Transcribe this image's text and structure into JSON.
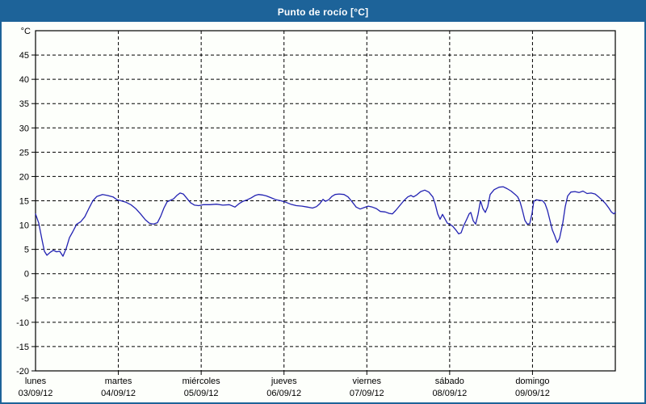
{
  "window": {
    "title": "Punto de rocío [°C]"
  },
  "colors": {
    "titlebar": "#1d6399",
    "border": "#1d6399",
    "page_bg": "#fdfffb",
    "axis": "#000000",
    "grid": "#000000",
    "line": "#2222b2"
  },
  "chart_data": {
    "type": "line",
    "title": "Punto de rocío [°C]",
    "ylabel": "°C",
    "unit_label": "°C",
    "ylim": [
      -20,
      50
    ],
    "y_ticks": [
      45,
      40,
      35,
      30,
      25,
      20,
      15,
      10,
      5,
      0,
      -5,
      -10,
      -15,
      -20
    ],
    "grid": "dashed",
    "legend": "none",
    "x_days": [
      {
        "name": "lunes",
        "date": "03/09/12"
      },
      {
        "name": "martes",
        "date": "04/09/12"
      },
      {
        "name": "miércoles",
        "date": "05/09/12"
      },
      {
        "name": "jueves",
        "date": "06/09/12"
      },
      {
        "name": "viernes",
        "date": "07/09/12"
      },
      {
        "name": "sábado",
        "date": "08/09/12"
      },
      {
        "name": "domingo",
        "date": "09/09/12"
      }
    ],
    "x_unit": "days from Monday 03/09/12 00:00 (0–7)",
    "series": [
      {
        "name": "Punto de rocío",
        "color": "#2222b2",
        "points": [
          [
            0.0,
            12.3
          ],
          [
            0.039,
            10.4
          ],
          [
            0.078,
            7.0
          ],
          [
            0.107,
            4.6
          ],
          [
            0.137,
            3.8
          ],
          [
            0.176,
            4.4
          ],
          [
            0.214,
            4.8
          ],
          [
            0.253,
            4.5
          ],
          [
            0.292,
            4.6
          ],
          [
            0.331,
            3.6
          ],
          [
            0.37,
            5.2
          ],
          [
            0.409,
            7.4
          ],
          [
            0.448,
            8.6
          ],
          [
            0.497,
            10.2
          ],
          [
            0.546,
            10.7
          ],
          [
            0.595,
            11.7
          ],
          [
            0.643,
            13.4
          ],
          [
            0.692,
            15.0
          ],
          [
            0.741,
            15.9
          ],
          [
            0.809,
            16.3
          ],
          [
            0.868,
            16.1
          ],
          [
            0.936,
            15.8
          ],
          [
            0.985,
            15.2
          ],
          [
            1.033,
            15.0
          ],
          [
            1.092,
            14.7
          ],
          [
            1.15,
            14.2
          ],
          [
            1.209,
            13.4
          ],
          [
            1.267,
            12.3
          ],
          [
            1.326,
            11.1
          ],
          [
            1.375,
            10.4
          ],
          [
            1.423,
            10.2
          ],
          [
            1.472,
            10.5
          ],
          [
            1.511,
            11.8
          ],
          [
            1.55,
            13.5
          ],
          [
            1.589,
            14.8
          ],
          [
            1.628,
            15.1
          ],
          [
            1.667,
            15.4
          ],
          [
            1.706,
            16.1
          ],
          [
            1.745,
            16.6
          ],
          [
            1.784,
            16.4
          ],
          [
            1.823,
            15.6
          ],
          [
            1.872,
            14.6
          ],
          [
            1.921,
            14.1
          ],
          [
            1.97,
            14.0
          ],
          [
            2.028,
            14.2
          ],
          [
            2.106,
            14.2
          ],
          [
            2.184,
            14.3
          ],
          [
            2.262,
            14.1
          ],
          [
            2.34,
            14.2
          ],
          [
            2.408,
            13.7
          ],
          [
            2.457,
            14.4
          ],
          [
            2.506,
            14.9
          ],
          [
            2.554,
            15.2
          ],
          [
            2.603,
            15.6
          ],
          [
            2.652,
            16.1
          ],
          [
            2.691,
            16.3
          ],
          [
            2.74,
            16.2
          ],
          [
            2.788,
            16.0
          ],
          [
            2.847,
            15.6
          ],
          [
            2.905,
            15.2
          ],
          [
            2.964,
            15.0
          ],
          [
            3.022,
            14.7
          ],
          [
            3.081,
            14.3
          ],
          [
            3.149,
            14.0
          ],
          [
            3.217,
            13.9
          ],
          [
            3.285,
            13.7
          ],
          [
            3.344,
            13.5
          ],
          [
            3.393,
            13.8
          ],
          [
            3.432,
            14.4
          ],
          [
            3.471,
            15.3
          ],
          [
            3.5,
            14.9
          ],
          [
            3.539,
            15.2
          ],
          [
            3.578,
            15.9
          ],
          [
            3.617,
            16.3
          ],
          [
            3.666,
            16.4
          ],
          [
            3.724,
            16.3
          ],
          [
            3.773,
            15.8
          ],
          [
            3.822,
            14.8
          ],
          [
            3.871,
            13.7
          ],
          [
            3.919,
            13.3
          ],
          [
            3.968,
            13.6
          ],
          [
            4.017,
            13.9
          ],
          [
            4.066,
            13.7
          ],
          [
            4.114,
            13.4
          ],
          [
            4.163,
            12.8
          ],
          [
            4.222,
            12.7
          ],
          [
            4.27,
            12.4
          ],
          [
            4.309,
            12.3
          ],
          [
            4.348,
            13.0
          ],
          [
            4.397,
            14.0
          ],
          [
            4.446,
            15.0
          ],
          [
            4.494,
            15.8
          ],
          [
            4.533,
            16.1
          ],
          [
            4.563,
            15.8
          ],
          [
            4.602,
            16.2
          ],
          [
            4.65,
            16.9
          ],
          [
            4.699,
            17.2
          ],
          [
            4.748,
            16.8
          ],
          [
            4.797,
            15.8
          ],
          [
            4.826,
            14.3
          ],
          [
            4.855,
            12.3
          ],
          [
            4.884,
            11.2
          ],
          [
            4.914,
            12.2
          ],
          [
            4.943,
            11.3
          ],
          [
            4.972,
            10.4
          ],
          [
            5.001,
            10.2
          ],
          [
            5.04,
            9.7
          ],
          [
            5.079,
            8.9
          ],
          [
            5.109,
            8.2
          ],
          [
            5.138,
            8.4
          ],
          [
            5.167,
            9.8
          ],
          [
            5.206,
            11.2
          ],
          [
            5.235,
            12.3
          ],
          [
            5.255,
            12.6
          ],
          [
            5.284,
            10.9
          ],
          [
            5.313,
            10.2
          ],
          [
            5.343,
            12.2
          ],
          [
            5.372,
            15.0
          ],
          [
            5.401,
            13.4
          ],
          [
            5.43,
            12.6
          ],
          [
            5.46,
            13.8
          ],
          [
            5.489,
            16.3
          ],
          [
            5.538,
            17.3
          ],
          [
            5.596,
            17.8
          ],
          [
            5.645,
            17.9
          ],
          [
            5.694,
            17.5
          ],
          [
            5.742,
            17.0
          ],
          [
            5.791,
            16.3
          ],
          [
            5.821,
            15.8
          ],
          [
            5.85,
            14.8
          ],
          [
            5.879,
            13.0
          ],
          [
            5.908,
            11.0
          ],
          [
            5.937,
            10.2
          ],
          [
            5.967,
            10.3
          ],
          [
            5.996,
            12.5
          ],
          [
            6.015,
            14.9
          ],
          [
            6.045,
            15.2
          ],
          [
            6.084,
            15.1
          ],
          [
            6.123,
            15.0
          ],
          [
            6.152,
            14.4
          ],
          [
            6.181,
            13.0
          ],
          [
            6.21,
            11.0
          ],
          [
            6.24,
            9.0
          ],
          [
            6.269,
            7.8
          ],
          [
            6.298,
            6.4
          ],
          [
            6.327,
            7.3
          ],
          [
            6.366,
            10.5
          ],
          [
            6.396,
            13.8
          ],
          [
            6.425,
            16.0
          ],
          [
            6.464,
            16.8
          ],
          [
            6.513,
            16.9
          ],
          [
            6.561,
            16.7
          ],
          [
            6.61,
            17.0
          ],
          [
            6.659,
            16.5
          ],
          [
            6.708,
            16.6
          ],
          [
            6.756,
            16.4
          ],
          [
            6.805,
            15.7
          ],
          [
            6.844,
            15.1
          ],
          [
            6.883,
            14.4
          ],
          [
            6.922,
            13.5
          ],
          [
            6.952,
            12.7
          ],
          [
            6.981,
            12.3
          ],
          [
            7.0,
            12.6
          ]
        ]
      }
    ]
  }
}
